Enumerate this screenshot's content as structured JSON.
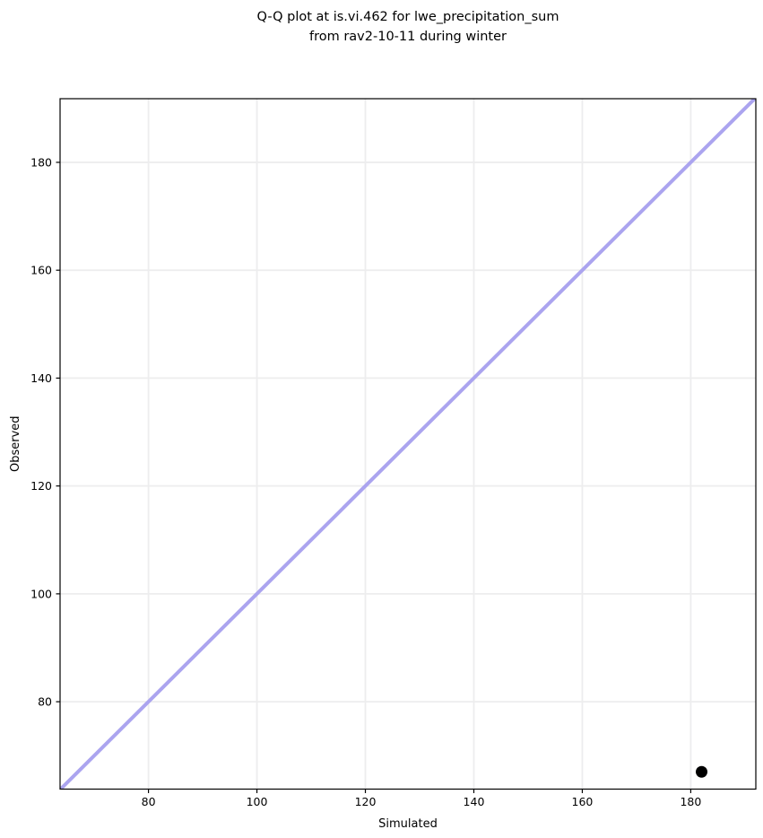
{
  "header": {
    "title_line1": "Q-Q plot at is.vi.462 for lwe_precipitation_sum",
    "title_line2": "from rav2-10-11 during winter"
  },
  "chart_data": {
    "type": "scatter",
    "title": "Q-Q plot at is.vi.462 for lwe_precipitation_sum\nfrom rav2-10-11 during winter",
    "xlabel": "Simulated",
    "ylabel": "Observed",
    "xlim": [
      63.7,
      192.0
    ],
    "ylim": [
      63.8,
      191.8
    ],
    "xticks": [
      80,
      100,
      120,
      140,
      160,
      180
    ],
    "yticks": [
      80,
      100,
      120,
      140,
      160,
      180
    ],
    "grid": true,
    "legend": "none",
    "series": [
      {
        "name": "identity-line",
        "kind": "line",
        "x": [
          63.7,
          192.0
        ],
        "y": [
          63.7,
          192.0
        ],
        "color": "#aba4ef",
        "line_width": 4
      },
      {
        "name": "quantile-points",
        "kind": "scatter",
        "points": [
          {
            "x": 182,
            "y": 67
          }
        ],
        "color": "#000000",
        "marker_radius": 6.5
      }
    ],
    "style": {
      "grid_color": "#ededee",
      "grid_width": 1.8,
      "spine_color": "#000000",
      "spine_width": 1.2,
      "tick_color": "#000000",
      "tick_length": 4.5,
      "tick_label_size": 12.5,
      "axis_label_size": 13,
      "background": "#ffffff"
    }
  }
}
